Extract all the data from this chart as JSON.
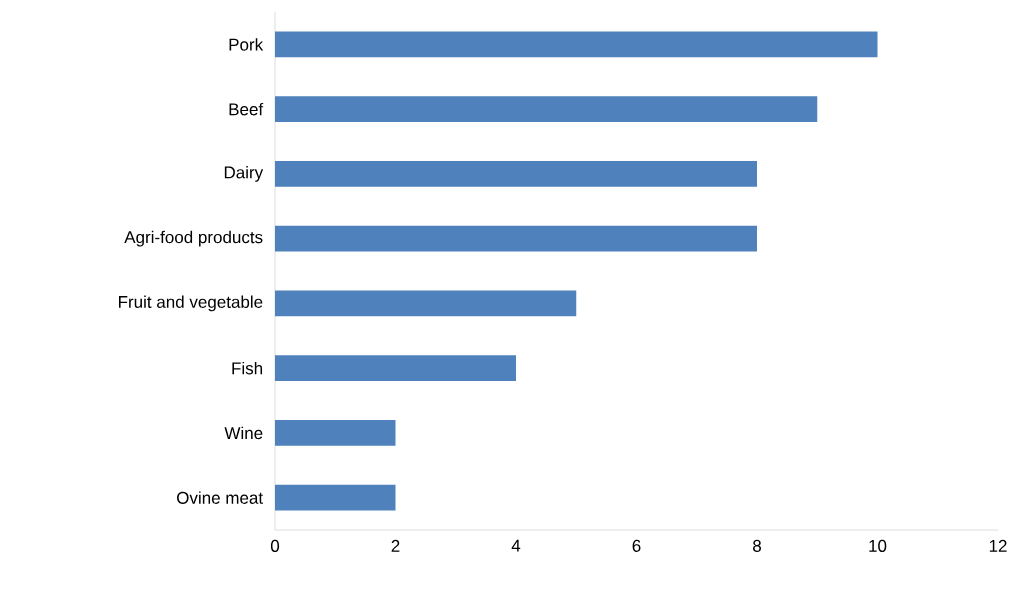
{
  "chart_data": {
    "type": "bar",
    "orientation": "horizontal",
    "categories": [
      "Pork",
      "Beef",
      "Dairy",
      "Agri-food products",
      "Fruit and vegetable",
      "Fish",
      "Wine",
      "Ovine meat"
    ],
    "values": [
      10,
      9,
      8,
      8,
      5,
      4,
      2,
      2
    ],
    "color": "#4f81bd",
    "xlim": [
      0,
      12
    ],
    "xticks": [
      0,
      2,
      4,
      6,
      8,
      10,
      12
    ]
  }
}
